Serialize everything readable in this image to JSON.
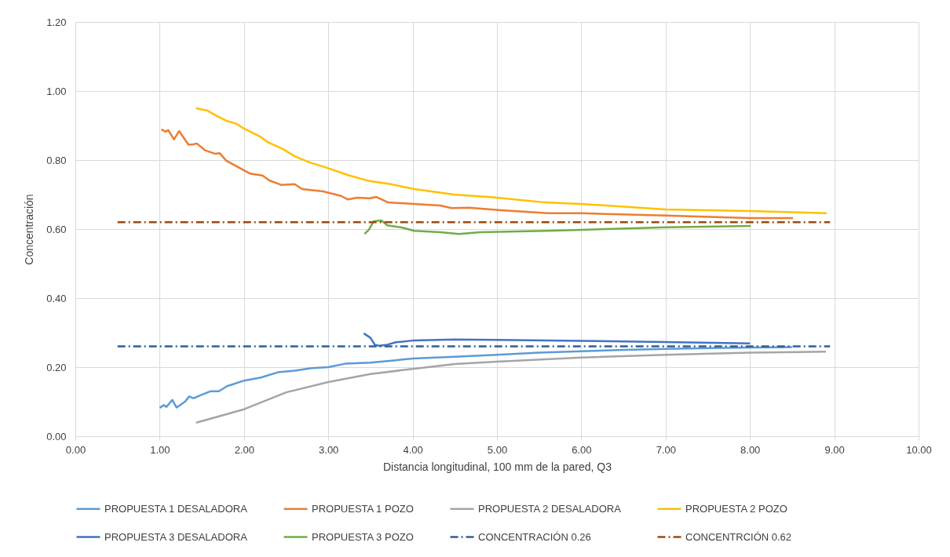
{
  "chart_data": {
    "type": "line",
    "xlabel": "Distancia longitudinal, 100 mm de la pared, Q3",
    "ylabel": "Concentración",
    "xlim": [
      0,
      10
    ],
    "ylim": [
      0,
      1.2
    ],
    "xticks": [
      {
        "value": 0,
        "label": "0.00"
      },
      {
        "value": 1,
        "label": "1.00"
      },
      {
        "value": 2,
        "label": "2.00"
      },
      {
        "value": 3,
        "label": "3.00"
      },
      {
        "value": 4,
        "label": "4.00"
      },
      {
        "value": 5,
        "label": "5.00"
      },
      {
        "value": 6,
        "label": "6.00"
      },
      {
        "value": 7,
        "label": "7.00"
      },
      {
        "value": 8,
        "label": "8.00"
      },
      {
        "value": 9,
        "label": "9.00"
      },
      {
        "value": 10,
        "label": "10.00"
      }
    ],
    "yticks": [
      {
        "value": 0,
        "label": "0.00"
      },
      {
        "value": 0.2,
        "label": "0.20"
      },
      {
        "value": 0.4,
        "label": "0.40"
      },
      {
        "value": 0.6,
        "label": "0.60"
      },
      {
        "value": 0.8,
        "label": "0.80"
      },
      {
        "value": 1,
        "label": "1.00"
      },
      {
        "value": 1.2,
        "label": "1.20"
      }
    ],
    "grid": true,
    "legend": "bottom",
    "line_style": "solid",
    "marker": "none",
    "series": [
      {
        "name": "PROPUESTA 1 DESALADORA",
        "color": "#5b9bd5",
        "x": [
          1.0,
          1.05,
          1.08,
          1.15,
          1.2,
          1.3,
          1.35,
          1.4,
          1.5,
          1.6,
          1.7,
          1.8,
          2.0,
          2.2,
          2.4,
          2.6,
          2.8,
          3.0,
          3.2,
          3.5,
          3.8,
          4.0,
          4.5,
          5.0,
          5.5,
          6.0,
          6.5,
          7.0,
          7.5,
          8.0,
          8.5
        ],
        "values": [
          0.082,
          0.09,
          0.085,
          0.105,
          0.083,
          0.1,
          0.115,
          0.11,
          0.12,
          0.13,
          0.13,
          0.145,
          0.161,
          0.17,
          0.185,
          0.19,
          0.197,
          0.2,
          0.21,
          0.213,
          0.22,
          0.225,
          0.23,
          0.236,
          0.242,
          0.246,
          0.25,
          0.253,
          0.255,
          0.257,
          0.258
        ]
      },
      {
        "name": "PROPUESTA 1 POZO",
        "color": "#ed7d31",
        "x": [
          1.02,
          1.07,
          1.1,
          1.17,
          1.23,
          1.34,
          1.39,
          1.44,
          1.54,
          1.66,
          1.71,
          1.79,
          2.0,
          2.07,
          2.22,
          2.3,
          2.44,
          2.6,
          2.69,
          2.94,
          3.15,
          3.23,
          3.34,
          3.49,
          3.57,
          3.71,
          4.02,
          4.33,
          4.46,
          4.67,
          5.02,
          5.6,
          6.0,
          7.0,
          8.0,
          8.51
        ],
        "values": [
          0.889,
          0.882,
          0.887,
          0.86,
          0.884,
          0.845,
          0.845,
          0.848,
          0.828,
          0.818,
          0.82,
          0.798,
          0.77,
          0.761,
          0.755,
          0.741,
          0.728,
          0.73,
          0.716,
          0.709,
          0.696,
          0.686,
          0.691,
          0.689,
          0.693,
          0.677,
          0.673,
          0.668,
          0.661,
          0.662,
          0.655,
          0.646,
          0.646,
          0.639,
          0.632,
          0.632
        ]
      },
      {
        "name": "PROPUESTA 2 DESALADORA",
        "color": "#a5a5a5",
        "x": [
          1.43,
          2.0,
          2.5,
          3.0,
          3.5,
          4.0,
          4.5,
          5.0,
          6.0,
          7.0,
          8.0,
          8.9
        ],
        "values": [
          0.039,
          0.078,
          0.127,
          0.157,
          0.18,
          0.195,
          0.209,
          0.216,
          0.228,
          0.236,
          0.242,
          0.245
        ]
      },
      {
        "name": "PROPUESTA 2 POZO",
        "color": "#ffc000",
        "x": [
          1.43,
          1.57,
          1.66,
          1.79,
          1.91,
          2.0,
          2.19,
          2.28,
          2.46,
          2.6,
          2.78,
          2.94,
          3.25,
          3.49,
          3.74,
          4.02,
          4.49,
          4.95,
          5.58,
          6.0,
          7.0,
          8.0,
          8.91
        ],
        "values": [
          0.95,
          0.943,
          0.93,
          0.914,
          0.905,
          0.891,
          0.868,
          0.852,
          0.832,
          0.811,
          0.793,
          0.781,
          0.755,
          0.739,
          0.73,
          0.716,
          0.7,
          0.692,
          0.677,
          0.673,
          0.657,
          0.652,
          0.646
        ]
      },
      {
        "name": "PROPUESTA 3 DESALADORA",
        "color": "#4472c4",
        "x": [
          3.42,
          3.5,
          3.55,
          3.6,
          3.7,
          3.8,
          4.0,
          4.5,
          5.0,
          6.0,
          7.0,
          8.0
        ],
        "values": [
          0.298,
          0.285,
          0.265,
          0.262,
          0.265,
          0.272,
          0.277,
          0.28,
          0.279,
          0.276,
          0.273,
          0.269
        ]
      },
      {
        "name": "PROPUESTA 3 POZO",
        "color": "#70ad47",
        "x": [
          3.43,
          3.48,
          3.54,
          3.63,
          3.7,
          3.86,
          4.02,
          4.33,
          4.55,
          4.8,
          5.58,
          6.0,
          7.0,
          8.01
        ],
        "values": [
          0.586,
          0.598,
          0.623,
          0.625,
          0.611,
          0.605,
          0.595,
          0.591,
          0.586,
          0.591,
          0.595,
          0.598,
          0.605,
          0.609
        ]
      },
      {
        "name": "CONCENTRACIÓN 0.26",
        "color": "#2e5f94",
        "line_style": "dashed",
        "x": [
          0.5,
          8.95
        ],
        "values": [
          0.26,
          0.26
        ]
      },
      {
        "name": "CONCENTRCIÓN 0.62",
        "color": "#9e480e",
        "line_style": "dashed",
        "x": [
          0.5,
          8.95
        ],
        "values": [
          0.62,
          0.62
        ]
      }
    ]
  }
}
